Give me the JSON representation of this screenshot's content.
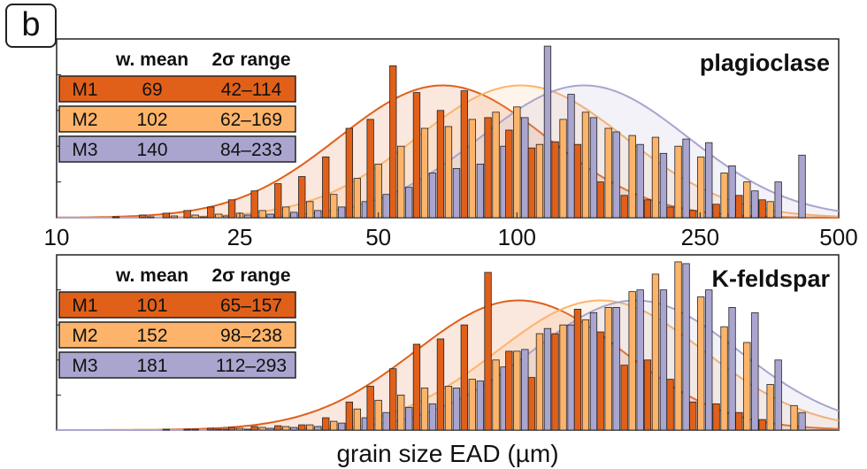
{
  "panel_label": "b",
  "colors": {
    "M1": "#e0601a",
    "M2": "#fdb46a",
    "M3": "#a9a5cf",
    "M1_fill": "#e0601a",
    "M2_fill": "#fdb46a",
    "M3_fill": "#a9a5cf"
  },
  "chart_data": [
    {
      "type": "bar",
      "title": "plagioclase",
      "xlabel": "grain size EAD (µm)",
      "xscale": "log",
      "xlim": [
        10,
        500
      ],
      "xticks": [
        {
          "value": 10,
          "label": "10"
        },
        {
          "value": 25,
          "label": "25"
        },
        {
          "value": 50,
          "label": "50"
        },
        {
          "value": 100,
          "label": "100"
        },
        {
          "value": 250,
          "label": "250"
        },
        {
          "value": 500,
          "label": "500"
        }
      ],
      "ylabel": "",
      "ylim": [
        0,
        200
      ],
      "table": {
        "headers": [
          "w. mean",
          "2σ range"
        ],
        "rows": [
          {
            "label": "M1",
            "mean": "69",
            "range": "42–114"
          },
          {
            "label": "M2",
            "mean": "102",
            "range": "62–169"
          },
          {
            "label": "M3",
            "mean": "140",
            "range": "84–233"
          }
        ]
      },
      "bin_centers": [
        14,
        16,
        18,
        20,
        22.5,
        25,
        28,
        31.5,
        35.5,
        40,
        45,
        50,
        56,
        63,
        71,
        80,
        90,
        100,
        112,
        126,
        141,
        158,
        178,
        200,
        224,
        251,
        282,
        316,
        355,
        400
      ],
      "series": [
        {
          "name": "M1",
          "curve_mean": 69,
          "curve_peak": 148,
          "values": [
            1,
            3,
            5,
            8,
            12,
            20,
            30,
            38,
            46,
            68,
            100,
            110,
            170,
            140,
            120,
            142,
            112,
            98,
            78,
            85,
            82,
            40,
            25,
            20,
            12,
            8,
            15,
            25,
            20,
            0
          ]
        },
        {
          "name": "M2",
          "curve_mean": 102,
          "curve_peak": 148,
          "values": [
            0,
            1,
            2,
            3,
            4,
            5,
            8,
            12,
            18,
            26,
            44,
            60,
            80,
            100,
            102,
            110,
            118,
            124,
            82,
            110,
            118,
            100,
            92,
            90,
            80,
            68,
            50,
            40,
            18,
            0
          ]
        },
        {
          "name": "M3",
          "curve_mean": 140,
          "curve_peak": 148,
          "values": [
            0,
            0,
            0,
            1,
            2,
            3,
            4,
            6,
            8,
            12,
            18,
            26,
            34,
            50,
            55,
            60,
            80,
            112,
            192,
            138,
            112,
            96,
            82,
            72,
            88,
            84,
            58,
            30,
            40,
            70
          ]
        }
      ]
    },
    {
      "type": "bar",
      "title": "K-feldspar",
      "xlabel": "grain size EAD (µm)",
      "xscale": "log",
      "xlim": [
        10,
        500
      ],
      "ylabel": "",
      "ylim": [
        0,
        200
      ],
      "table": {
        "headers": [
          "w. mean",
          "2σ range"
        ],
        "rows": [
          {
            "label": "M1",
            "mean": "101",
            "range": "65–157"
          },
          {
            "label": "M2",
            "mean": "152",
            "range": "98–238"
          },
          {
            "label": "M3",
            "mean": "181",
            "range": "112–293"
          }
        ]
      },
      "bin_centers": [
        14,
        16,
        18,
        20,
        22.5,
        25,
        28,
        31.5,
        35.5,
        40,
        45,
        50,
        56,
        63,
        71,
        80,
        90,
        100,
        112,
        126,
        141,
        158,
        178,
        200,
        224,
        251,
        282,
        316,
        355,
        400
      ],
      "series": [
        {
          "name": "M1",
          "curve_mean": 101,
          "curve_peak": 148,
          "values": [
            0,
            0,
            1,
            1,
            2,
            3,
            4,
            5,
            6,
            14,
            32,
            50,
            70,
            98,
            104,
            120,
            180,
            90,
            60,
            110,
            138,
            112,
            74,
            80,
            58,
            32,
            30,
            20,
            12,
            0
          ]
        },
        {
          "name": "M2",
          "curve_mean": 152,
          "curve_peak": 148,
          "values": [
            0,
            0,
            0,
            1,
            1,
            2,
            3,
            4,
            6,
            10,
            24,
            34,
            40,
            48,
            50,
            58,
            80,
            90,
            110,
            120,
            126,
            140,
            158,
            178,
            192,
            152,
            118,
            100,
            52,
            28
          ]
        },
        {
          "name": "M3",
          "curve_mean": 181,
          "curve_peak": 148,
          "values": [
            0,
            0,
            0,
            0,
            1,
            1,
            2,
            3,
            4,
            8,
            14,
            20,
            26,
            30,
            48,
            56,
            72,
            92,
            116,
            120,
            134,
            140,
            160,
            160,
            190,
            160,
            140,
            134,
            80,
            20
          ]
        }
      ]
    }
  ]
}
